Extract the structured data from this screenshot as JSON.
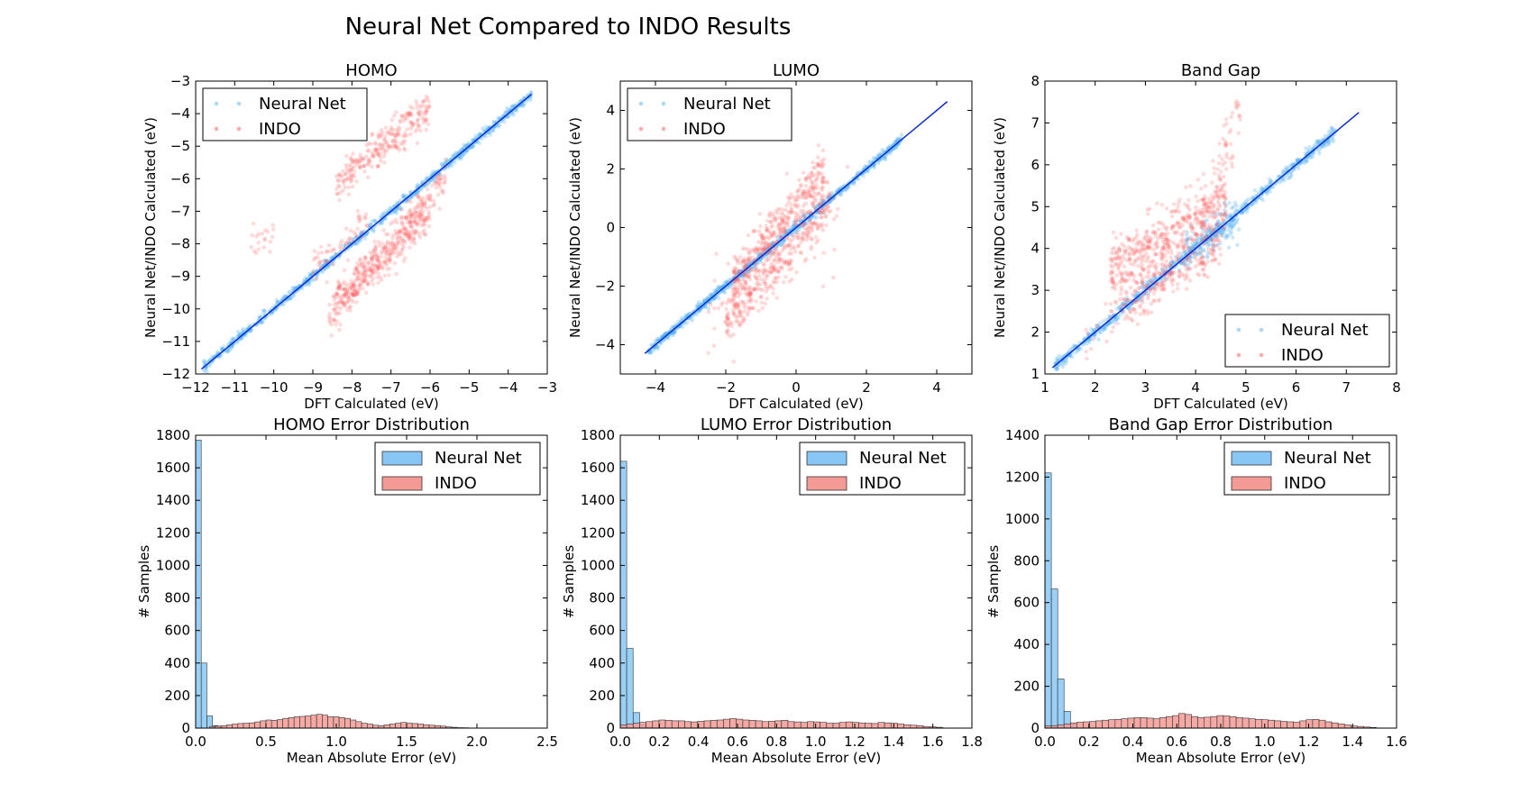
{
  "title": "Neural Net Compared to INDO Results",
  "colors": {
    "nn_point": "#5ab4f0",
    "indo_point": "#ff5a5a",
    "fit_line": "#0a2bd6",
    "nn_bar": "#88c7f5",
    "indo_bar": "#f39a95",
    "bar_edge": "#333333"
  },
  "legend": {
    "neural_net": "Neural Net",
    "indo": "INDO"
  },
  "chart_data": [
    {
      "type": "scatter",
      "title": "HOMO",
      "xlabel": "DFT Calculated (eV)",
      "ylabel": "Neural Net/INDO Calculated (eV)",
      "xlim": [
        -12,
        -3
      ],
      "ylim": [
        -12,
        -3
      ],
      "xticks": [
        "−12",
        "−11",
        "−10",
        "−9",
        "−8",
        "−7",
        "−6",
        "−5",
        "−4",
        "−3"
      ],
      "yticks": [
        "−12",
        "−11",
        "−10",
        "−9",
        "−8",
        "−7",
        "−6",
        "−5",
        "−4",
        "−3"
      ],
      "legend_loc": "upper-left",
      "fit_line": [
        [
          -11.85,
          -11.85
        ],
        [
          -3.4,
          -3.4
        ]
      ],
      "series": [
        {
          "name": "Neural Net",
          "alpha": 0.3,
          "clusters": [
            {
              "x0": -11.8,
              "x1": -3.4,
              "m": 1,
              "b": 0,
              "sd": 0.07,
              "n": 900
            }
          ]
        },
        {
          "name": "INDO",
          "alpha": 0.22,
          "clusters": [
            {
              "x0": -8.4,
              "x1": -6.0,
              "m": 1.0,
              "b": 2.2,
              "sd": 0.3,
              "n": 260
            },
            {
              "x0": -8.6,
              "x1": -5.6,
              "m": 1.4,
              "b": 1.8,
              "sd": 0.3,
              "n": 260
            },
            {
              "x0": -8.4,
              "x1": -6.0,
              "m": 1.1,
              "b": -0.5,
              "sd": 0.3,
              "n": 260
            },
            {
              "x0": -9.0,
              "x1": -7.6,
              "m": 1.0,
              "b": 0.2,
              "sd": 0.3,
              "n": 60
            },
            {
              "x0": -10.6,
              "x1": -10.0,
              "m": 0.6,
              "b": -1.8,
              "sd": 0.4,
              "n": 20
            }
          ]
        }
      ]
    },
    {
      "type": "scatter",
      "title": "LUMO",
      "xlabel": "DFT Calculated (eV)",
      "ylabel": "Neural Net/INDO Calculated (eV)",
      "xlim": [
        -5,
        5
      ],
      "ylim": [
        -5,
        5
      ],
      "xticks": [
        "−4",
        "−2",
        "0",
        "2",
        "4"
      ],
      "xtick_values": [
        -4,
        -2,
        0,
        2,
        4
      ],
      "yticks": [
        "−4",
        "−2",
        "0",
        "2",
        "4"
      ],
      "ytick_values": [
        -4,
        -2,
        0,
        2,
        4
      ],
      "legend_loc": "upper-left",
      "fit_line": [
        [
          -4.3,
          -4.3
        ],
        [
          4.3,
          4.3
        ]
      ],
      "series": [
        {
          "name": "Neural Net",
          "alpha": 0.3,
          "clusters": [
            {
              "x0": -4.2,
              "x1": 3.0,
              "m": 1,
              "b": 0,
              "sd": 0.08,
              "n": 900
            }
          ]
        },
        {
          "name": "INDO",
          "alpha": 0.22,
          "clusters": [
            {
              "x0": -1.8,
              "x1": 0.8,
              "m": 1.5,
              "b": 0.8,
              "sd": 0.4,
              "n": 320
            },
            {
              "x0": -2.0,
              "x1": 1.0,
              "m": 1.4,
              "b": -0.5,
              "sd": 0.45,
              "n": 320
            },
            {
              "x0": -2.5,
              "x1": 1.5,
              "m": 1.2,
              "b": -0.2,
              "sd": 0.9,
              "n": 100
            }
          ]
        }
      ]
    },
    {
      "type": "scatter",
      "title": "Band Gap",
      "xlabel": "DFT Calculated (eV)",
      "ylabel": "Neural Net/INDO Calculated (eV)",
      "xlim": [
        1,
        8
      ],
      "ylim": [
        1,
        8
      ],
      "xticks": [
        "1",
        "2",
        "3",
        "4",
        "5",
        "6",
        "7",
        "8"
      ],
      "yticks": [
        "1",
        "2",
        "3",
        "4",
        "5",
        "6",
        "7",
        "8"
      ],
      "legend_loc": "lower-right",
      "fit_line": [
        [
          1.15,
          1.15
        ],
        [
          7.25,
          7.25
        ]
      ],
      "series": [
        {
          "name": "Neural Net",
          "alpha": 0.3,
          "clusters": [
            {
              "x0": 1.2,
              "x1": 6.8,
              "m": 1,
              "b": 0,
              "sd": 0.08,
              "n": 800
            },
            {
              "x0": 3.8,
              "x1": 4.9,
              "m": 0.6,
              "b": 1.7,
              "sd": 0.25,
              "n": 120
            }
          ]
        },
        {
          "name": "INDO",
          "alpha": 0.22,
          "clusters": [
            {
              "x0": 2.3,
              "x1": 4.6,
              "m": 0.7,
              "b": 1.9,
              "sd": 0.35,
              "n": 450
            },
            {
              "x0": 2.5,
              "x1": 4.5,
              "m": 0.8,
              "b": 0.6,
              "sd": 0.3,
              "n": 250
            },
            {
              "x0": 4.3,
              "x1": 4.9,
              "m": 3.0,
              "b": -7.5,
              "sd": 0.4,
              "n": 50
            },
            {
              "x0": 1.8,
              "x1": 2.5,
              "m": 1.0,
              "b": 0.0,
              "sd": 0.3,
              "n": 20
            }
          ]
        }
      ]
    },
    {
      "type": "bar",
      "title": "HOMO Error Distribution",
      "xlabel": "Mean Absolute Error (eV)",
      "ylabel": "# Samples",
      "xlim": [
        0,
        2.5
      ],
      "ylim": [
        0,
        1800
      ],
      "xticks": [
        "0.0",
        "0.5",
        "1.0",
        "1.5",
        "2.0",
        "2.5"
      ],
      "xtick_values": [
        0,
        0.5,
        1.0,
        1.5,
        2.0,
        2.5
      ],
      "yticks": [
        "0",
        "200",
        "400",
        "600",
        "800",
        "1000",
        "1200",
        "1400",
        "1600",
        "1800"
      ],
      "ytick_values": [
        0,
        200,
        400,
        600,
        800,
        1000,
        1200,
        1400,
        1600,
        1800
      ],
      "legend_loc": "upper-right",
      "series": [
        {
          "name": "Neural Net",
          "x0": 0.0,
          "width": 0.04,
          "values": [
            1770,
            400,
            75,
            15,
            5
          ]
        },
        {
          "name": "INDO",
          "x0": 0.1,
          "width": 0.04,
          "values": [
            10,
            12,
            15,
            20,
            25,
            28,
            30,
            32,
            38,
            45,
            50,
            48,
            52,
            60,
            65,
            70,
            72,
            75,
            80,
            85,
            80,
            70,
            70,
            65,
            60,
            50,
            40,
            30,
            25,
            18,
            15,
            20,
            25,
            30,
            35,
            30,
            28,
            25,
            20,
            18,
            15,
            12,
            8,
            5,
            3,
            2
          ]
        }
      ]
    },
    {
      "type": "bar",
      "title": "LUMO Error Distribution",
      "xlabel": "Mean Absolute Error (eV)",
      "ylabel": "# Samples",
      "xlim": [
        0,
        1.8
      ],
      "ylim": [
        0,
        1800
      ],
      "xticks": [
        "0.0",
        "0.2",
        "0.4",
        "0.6",
        "0.8",
        "1.0",
        "1.2",
        "1.4",
        "1.6",
        "1.8"
      ],
      "xtick_values": [
        0,
        0.2,
        0.4,
        0.6,
        0.8,
        1.0,
        1.2,
        1.4,
        1.6,
        1.8
      ],
      "yticks": [
        "0",
        "200",
        "400",
        "600",
        "800",
        "1000",
        "1200",
        "1400",
        "1600",
        "1800"
      ],
      "ytick_values": [
        0,
        200,
        400,
        600,
        800,
        1000,
        1200,
        1400,
        1600,
        1800
      ],
      "legend_loc": "upper-right",
      "series": [
        {
          "name": "Neural Net",
          "x0": 0.0,
          "width": 0.033,
          "values": [
            1640,
            490,
            95,
            20,
            5
          ]
        },
        {
          "name": "INDO",
          "x0": 0.0,
          "width": 0.033,
          "values": [
            20,
            25,
            30,
            35,
            40,
            45,
            50,
            48,
            45,
            45,
            40,
            38,
            42,
            45,
            48,
            50,
            55,
            58,
            55,
            50,
            48,
            45,
            40,
            42,
            45,
            48,
            40,
            38,
            35,
            40,
            38,
            35,
            30,
            30,
            35,
            38,
            35,
            32,
            30,
            28,
            35,
            32,
            30,
            25,
            20,
            18,
            15,
            10,
            8,
            5
          ]
        }
      ]
    },
    {
      "type": "bar",
      "title": "Band Gap Error Distribution",
      "xlabel": "Mean Absolute Error (eV)",
      "ylabel": "# Samples",
      "xlim": [
        0,
        1.6
      ],
      "ylim": [
        0,
        1400
      ],
      "xticks": [
        "0.0",
        "0.2",
        "0.4",
        "0.6",
        "0.8",
        "1.0",
        "1.2",
        "1.4",
        "1.6"
      ],
      "xtick_values": [
        0,
        0.2,
        0.4,
        0.6,
        0.8,
        1.0,
        1.2,
        1.4,
        1.6
      ],
      "yticks": [
        "0",
        "200",
        "400",
        "600",
        "800",
        "1000",
        "1200",
        "1400"
      ],
      "ytick_values": [
        0,
        200,
        400,
        600,
        800,
        1000,
        1200,
        1400
      ],
      "legend_loc": "upper-right",
      "series": [
        {
          "name": "Neural Net",
          "x0": 0.0,
          "width": 0.029,
          "values": [
            1220,
            665,
            235,
            80,
            20
          ]
        },
        {
          "name": "INDO",
          "x0": 0.0,
          "width": 0.029,
          "values": [
            10,
            12,
            15,
            20,
            25,
            28,
            30,
            32,
            35,
            38,
            40,
            42,
            45,
            48,
            50,
            50,
            48,
            45,
            50,
            55,
            60,
            70,
            65,
            55,
            50,
            52,
            55,
            60,
            58,
            55,
            50,
            48,
            45,
            42,
            40,
            38,
            35,
            32,
            30,
            28,
            35,
            40,
            42,
            38,
            30,
            25,
            20,
            15,
            10,
            8,
            5,
            3
          ]
        }
      ]
    }
  ]
}
